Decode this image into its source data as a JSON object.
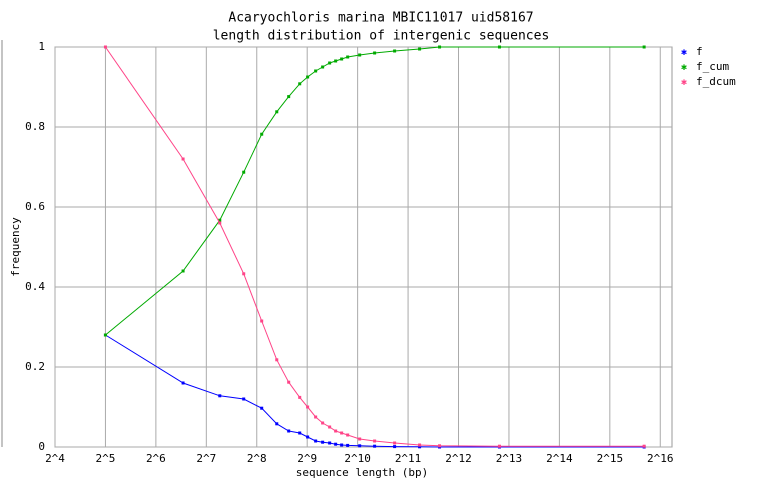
{
  "chart_data": {
    "type": "line",
    "title": "Acaryochloris marina MBIC11017 uid58167",
    "subtitle": "length distribution of intergenic sequences",
    "xlabel": "sequence length (bp)",
    "ylabel": "frequency",
    "x_log_base": 2,
    "grid": true,
    "legend": "right",
    "x": [
      32,
      93,
      154,
      214,
      274,
      337,
      397,
      462,
      515,
      575,
      633,
      697,
      757,
      822,
      893,
      1053,
      1293,
      1702,
      2399,
      3156,
      7190,
      52500
    ],
    "series": [
      {
        "name": "f",
        "color": "#0000ff",
        "values": [
          0.28,
          0.16,
          0.128,
          0.12,
          0.097,
          0.058,
          0.04,
          0.035,
          0.025,
          0.015,
          0.012,
          0.01,
          0.007,
          0.005,
          0.004,
          0.003,
          0.002,
          0.001,
          0.0005,
          0,
          0,
          0
        ]
      },
      {
        "name": "f_cum",
        "color": "#00aa00",
        "values": [
          0.28,
          0.44,
          0.567,
          0.687,
          0.782,
          0.838,
          0.876,
          0.908,
          0.925,
          0.94,
          0.95,
          0.96,
          0.965,
          0.97,
          0.975,
          0.98,
          0.985,
          0.99,
          0.995,
          1,
          1,
          1
        ]
      },
      {
        "name": "f_dcum",
        "color": "#ff4488",
        "values": [
          1,
          0.72,
          0.56,
          0.433,
          0.315,
          0.218,
          0.162,
          0.124,
          0.1,
          0.075,
          0.06,
          0.05,
          0.04,
          0.035,
          0.03,
          0.02,
          0.015,
          0.01,
          0.005,
          0.003,
          0.002,
          0.002
        ]
      }
    ],
    "xlim": [
      16,
      77000
    ],
    "xticks": [
      {
        "value": 16,
        "label": "2^4"
      },
      {
        "value": 32,
        "label": "2^5"
      },
      {
        "value": 64,
        "label": "2^6"
      },
      {
        "value": 128,
        "label": "2^7"
      },
      {
        "value": 256,
        "label": "2^8"
      },
      {
        "value": 512,
        "label": "2^9"
      },
      {
        "value": 1024,
        "label": "2^10"
      },
      {
        "value": 2048,
        "label": "2^11"
      },
      {
        "value": 4096,
        "label": "2^12"
      },
      {
        "value": 8192,
        "label": "2^13"
      },
      {
        "value": 16384,
        "label": "2^14"
      },
      {
        "value": 32768,
        "label": "2^15"
      },
      {
        "value": 65536,
        "label": "2^16"
      }
    ],
    "ylim": [
      0,
      1
    ],
    "yticks": [
      0,
      0.2,
      0.4,
      0.6,
      0.8,
      1
    ]
  }
}
